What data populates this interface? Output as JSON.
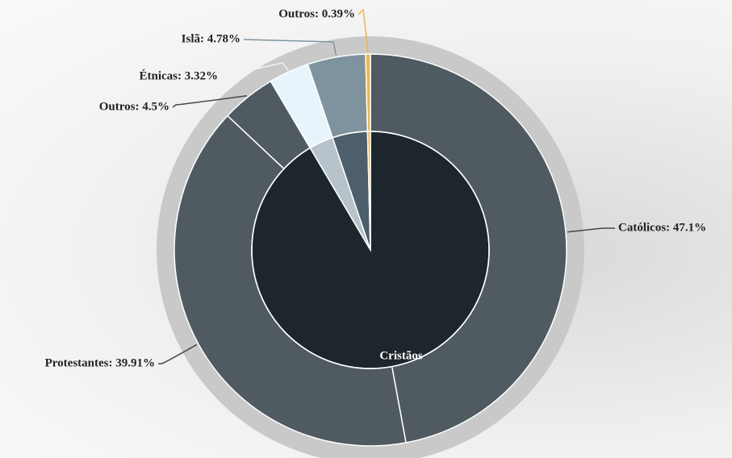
{
  "chart_data": {
    "type": "sunburst",
    "outer": {
      "labels": [
        "Católicos: 47.1%",
        "Protestantes: 39.91%",
        "Outros: 4.5%",
        "Étnicas: 3.32%",
        "Islã: 4.78%",
        "Outros: 0.39%"
      ],
      "values": [
        47.1,
        39.91,
        4.5,
        3.32,
        4.78,
        0.39
      ],
      "colors": [
        "#4f5a61",
        "#4f5a61",
        "#4f5a61",
        "#e8f4fb",
        "#7f939f",
        "#f0b54a"
      ]
    },
    "inner": {
      "labels": [
        "Cristãos",
        null,
        null,
        null
      ],
      "values": [
        91.51,
        3.32,
        4.78,
        0.39
      ],
      "colors": [
        "#1d262c",
        "#b7c3ca",
        "#4c5f6b",
        "#f0b54a"
      ]
    }
  }
}
